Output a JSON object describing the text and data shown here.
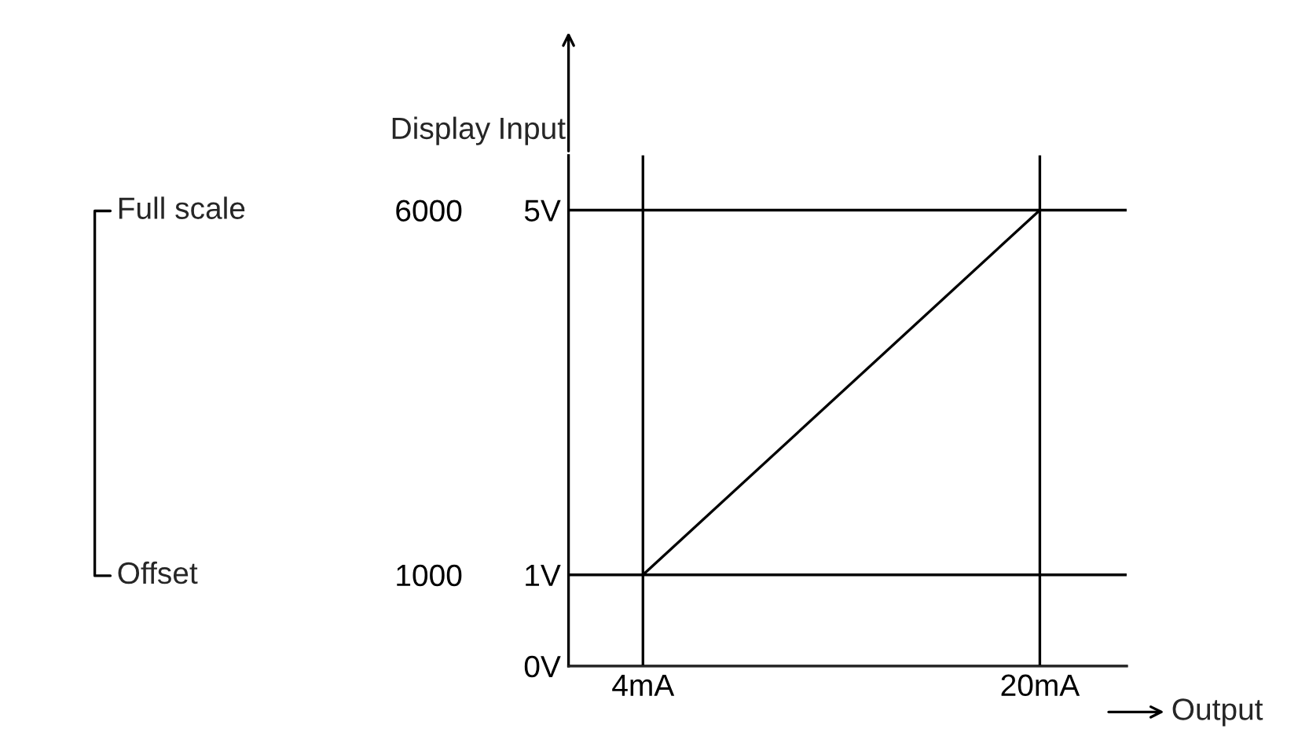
{
  "chart_data": {
    "type": "line",
    "x": [
      4,
      20
    ],
    "series": [
      {
        "color": "#000000",
        "values": [
          1,
          5
        ]
      }
    ],
    "xlim": [
      1,
      23.5
    ],
    "xticks": [
      {
        "value": 4,
        "label": "4mA"
      },
      {
        "value": 20,
        "label": "20mA"
      }
    ],
    "ylim": [
      0,
      5.6
    ],
    "yticks": [
      {
        "value": 0,
        "label": "0V"
      },
      {
        "value": 1,
        "label": "1V"
      },
      {
        "value": 5,
        "label": "5V"
      }
    ],
    "y2lim": [
      -250,
      6750
    ],
    "y2ticks": [
      1000,
      6000
    ],
    "xlabel": "Output",
    "ylabel": "Input",
    "y2label": "Display",
    "ref_lines": [
      {
        "axis": "x",
        "value": 4,
        "color": "#000000"
      },
      {
        "axis": "x",
        "value": 20,
        "color": "#000000"
      },
      {
        "axis": "y",
        "value": 1,
        "color": "#000000"
      },
      {
        "axis": "y",
        "value": 5,
        "color": "#000000"
      }
    ],
    "annotations": [
      "Full scale",
      "Offset"
    ],
    "grid": false,
    "legend": false,
    "marker": "none",
    "line_style": "solid"
  }
}
